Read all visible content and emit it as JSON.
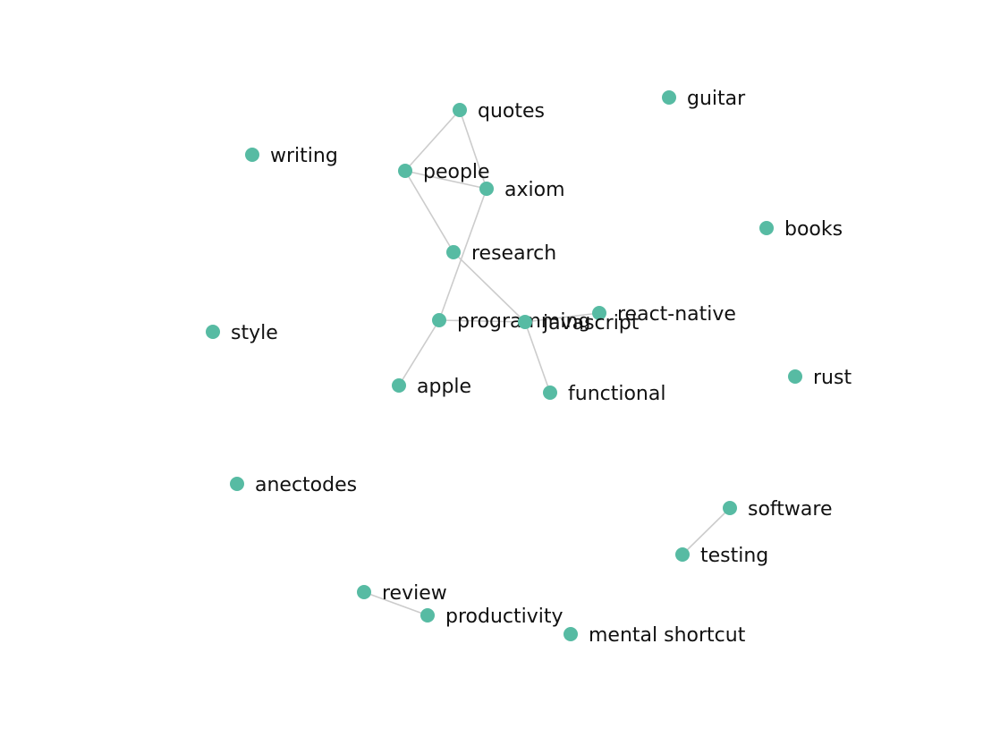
{
  "graph": {
    "node_color": "#57bba3",
    "edge_color": "#cccccc",
    "label_color": "#111111",
    "nodes": [
      {
        "id": "quotes",
        "label": "quotes"
      },
      {
        "id": "guitar",
        "label": "guitar"
      },
      {
        "id": "writing",
        "label": "writing"
      },
      {
        "id": "people",
        "label": "people"
      },
      {
        "id": "axiom",
        "label": "axiom"
      },
      {
        "id": "books",
        "label": "books"
      },
      {
        "id": "research",
        "label": "research"
      },
      {
        "id": "react-native",
        "label": "react-native"
      },
      {
        "id": "programming",
        "label": "programming"
      },
      {
        "id": "javascript",
        "label": "javascript"
      },
      {
        "id": "style",
        "label": "style"
      },
      {
        "id": "rust",
        "label": "rust"
      },
      {
        "id": "apple",
        "label": "apple"
      },
      {
        "id": "functional",
        "label": "functional"
      },
      {
        "id": "anectodes",
        "label": "anectodes"
      },
      {
        "id": "software",
        "label": "software"
      },
      {
        "id": "testing",
        "label": "testing"
      },
      {
        "id": "review",
        "label": "review"
      },
      {
        "id": "productivity",
        "label": "productivity"
      },
      {
        "id": "mental-shortcut",
        "label": "mental shortcut"
      }
    ],
    "edges": [
      {
        "source": "quotes",
        "target": "people"
      },
      {
        "source": "quotes",
        "target": "axiom"
      },
      {
        "source": "people",
        "target": "axiom"
      },
      {
        "source": "people",
        "target": "research"
      },
      {
        "source": "axiom",
        "target": "programming"
      },
      {
        "source": "research",
        "target": "javascript"
      },
      {
        "source": "programming",
        "target": "javascript"
      },
      {
        "source": "programming",
        "target": "apple"
      },
      {
        "source": "javascript",
        "target": "react-native"
      },
      {
        "source": "javascript",
        "target": "functional"
      },
      {
        "source": "software",
        "target": "testing"
      },
      {
        "source": "review",
        "target": "productivity"
      }
    ]
  }
}
